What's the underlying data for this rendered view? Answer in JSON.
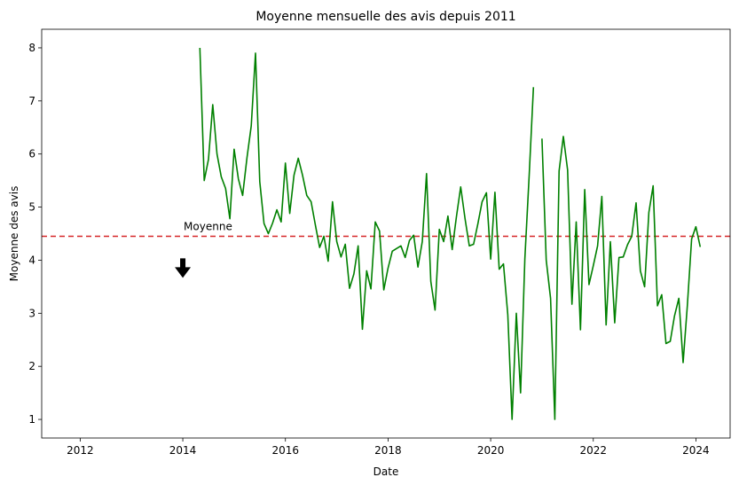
{
  "chart_data": {
    "type": "line",
    "title": "Moyenne mensuelle des avis depuis 2011",
    "xlabel": "Date",
    "ylabel": "Moyenne des avis",
    "xlim": [
      "2011-04-01",
      "2024-09-01"
    ],
    "ylim": [
      0.65,
      8.35
    ],
    "xticks": [
      "2012",
      "2014",
      "2016",
      "2018",
      "2020",
      "2022",
      "2024"
    ],
    "yticks": [
      "1",
      "2",
      "3",
      "4",
      "5",
      "6",
      "7",
      "8"
    ],
    "grid": false,
    "series": [
      {
        "color": "#008000",
        "x": [
          "2014-05",
          "2014-06",
          "2014-07",
          "2014-08",
          "2014-09",
          "2014-10",
          "2014-11",
          "2014-12",
          "2015-01",
          "2015-02",
          "2015-03",
          "2015-04",
          "2015-05",
          "2015-06",
          "2015-07",
          "2015-08",
          "2015-09",
          "2015-10",
          "2015-11",
          "2015-12",
          "2016-01",
          "2016-02",
          "2016-03",
          "2016-04",
          "2016-05",
          "2016-06",
          "2016-07",
          "2016-08",
          "2016-09",
          "2016-10",
          "2016-11",
          "2016-12",
          "2017-01",
          "2017-02",
          "2017-03",
          "2017-04",
          "2017-05",
          "2017-06",
          "2017-07",
          "2017-08",
          "2017-09",
          "2017-10",
          "2017-11",
          "2017-12",
          "2018-01",
          "2018-02",
          "2018-03",
          "2018-04",
          "2018-05",
          "2018-06",
          "2018-07",
          "2018-08",
          "2018-09",
          "2018-10",
          "2018-11",
          "2018-12",
          "2019-01",
          "2019-02",
          "2019-03",
          "2019-04",
          "2019-05",
          "2019-06",
          "2019-07",
          "2019-08",
          "2019-09",
          "2019-10",
          "2019-11",
          "2019-12",
          "2020-01",
          "2020-02",
          "2020-03",
          "2020-04",
          "2020-05",
          "2020-06",
          "2020-07",
          "2020-08",
          "2020-09",
          "2020-10",
          "2020-11",
          "2020-12",
          "2021-01",
          "2021-02",
          "2021-03",
          "2021-04",
          "2021-05",
          "2021-06",
          "2021-07",
          "2021-08",
          "2021-09",
          "2021-10",
          "2021-11",
          "2021-12",
          "2022-01",
          "2022-02",
          "2022-03",
          "2022-04",
          "2022-05",
          "2022-06",
          "2022-07",
          "2022-08",
          "2022-09",
          "2022-10",
          "2022-11",
          "2022-12",
          "2023-01",
          "2023-02",
          "2023-03",
          "2023-04",
          "2023-05",
          "2023-06",
          "2023-07",
          "2023-08",
          "2023-09",
          "2023-10",
          "2023-11",
          "2023-12",
          "2024-01",
          "2024-02"
        ],
        "values": [
          8.0,
          5.5,
          5.9,
          6.93,
          6.0,
          5.57,
          5.35,
          4.78,
          6.09,
          5.53,
          5.22,
          5.93,
          6.53,
          7.9,
          5.48,
          4.69,
          4.5,
          4.7,
          4.95,
          4.72,
          5.83,
          4.88,
          5.6,
          5.92,
          5.6,
          5.22,
          5.1,
          4.66,
          4.24,
          4.45,
          3.98,
          5.1,
          4.35,
          4.06,
          4.3,
          3.47,
          3.74,
          4.27,
          2.7,
          3.8,
          3.46,
          4.72,
          4.55,
          3.44,
          3.85,
          4.17,
          4.22,
          4.27,
          4.05,
          4.37,
          4.47,
          3.87,
          4.35,
          5.63,
          3.6,
          3.06,
          4.58,
          4.35,
          4.83,
          4.2,
          4.82,
          5.38,
          4.78,
          4.27,
          4.3,
          4.68,
          5.1,
          5.27,
          4.02,
          5.28,
          3.83,
          3.93,
          2.97,
          1.0,
          3.0,
          1.5,
          4.02,
          5.6,
          7.26,
          null,
          6.29,
          4.0,
          3.28,
          1.0,
          5.68,
          6.33,
          5.7,
          3.17,
          4.72,
          2.69,
          5.33,
          3.54,
          3.9,
          4.27,
          5.2,
          2.78,
          4.35,
          2.82,
          4.05,
          4.06,
          4.29,
          4.45,
          5.08,
          3.8,
          3.5,
          4.9,
          5.4,
          3.14,
          3.35,
          2.43,
          2.47,
          2.95,
          3.28,
          2.07,
          3.15,
          4.4,
          4.63,
          4.25
        ]
      }
    ],
    "reference_line": {
      "y": 4.45,
      "color": "#d62728",
      "style": "dashed"
    },
    "annotation": {
      "text": "Moyenne",
      "x": "2014-01",
      "y": 4.5,
      "arrow_to_y": 4.0
    }
  }
}
